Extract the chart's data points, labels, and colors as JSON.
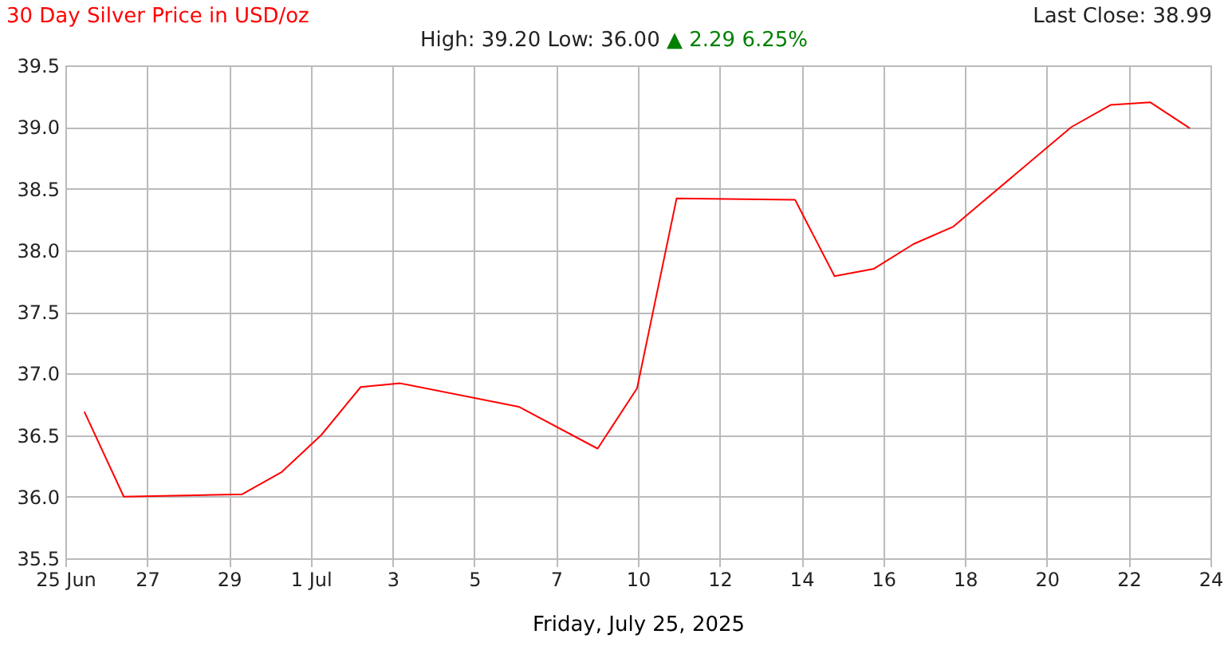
{
  "chart_data": {
    "type": "line",
    "title": "30 Day Silver Price in USD/oz",
    "subtitle": "High: 39.20 Low: 36.00",
    "annotations": [
      "▲ 2.29 6.25%",
      "Last Close: 38.99"
    ],
    "xlabel": "Friday, July 25, 2025",
    "x": [
      "2025-06-25T23:30",
      "2025-06-26T23:30",
      "2025-06-29T23:30",
      "2025-06-30T23:30",
      "2025-07-01T23:30",
      "2025-07-02T23:30",
      "2025-07-03T23:30",
      "2025-07-06T23:30",
      "2025-07-08T23:30",
      "2025-07-09T23:30",
      "2025-07-10T23:30",
      "2025-07-13T23:30",
      "2025-07-14T23:30",
      "2025-07-15T23:30",
      "2025-07-16T23:30",
      "2025-07-17T23:30",
      "2025-07-20T23:30",
      "2025-07-21T23:30",
      "2025-07-22T23:30",
      "2025-07-23T23:30"
    ],
    "series": [
      {
        "color": "#ff0000",
        "values": [
          36.69,
          36.0,
          36.02,
          36.2,
          36.5,
          36.89,
          36.92,
          36.73,
          36.39,
          36.88,
          38.42,
          38.41,
          37.79,
          37.85,
          38.05,
          38.19,
          39.0,
          39.18,
          39.2,
          38.99
        ]
      }
    ],
    "xlim": [
      "2025-06-25T12:00",
      "2025-07-24T12:00"
    ],
    "xticks": [
      {
        "value": "2025-06-25T12:00",
        "label": "25 Jun"
      },
      {
        "value": "2025-06-27T13:43",
        "label": "27"
      },
      {
        "value": "2025-06-29T15:26",
        "label": "29"
      },
      {
        "value": "2025-07-01T17:09",
        "label": "1 Jul"
      },
      {
        "value": "2025-07-03T18:51",
        "label": "3"
      },
      {
        "value": "2025-07-05T20:34",
        "label": "5"
      },
      {
        "value": "2025-07-07T22:17",
        "label": "7"
      },
      {
        "value": "2025-07-10T00:00",
        "label": "10"
      },
      {
        "value": "2025-07-12T01:43",
        "label": "12"
      },
      {
        "value": "2025-07-14T03:26",
        "label": "14"
      },
      {
        "value": "2025-07-16T05:09",
        "label": "16"
      },
      {
        "value": "2025-07-18T06:51",
        "label": "18"
      },
      {
        "value": "2025-07-20T08:34",
        "label": "20"
      },
      {
        "value": "2025-07-22T10:17",
        "label": "22"
      },
      {
        "value": "2025-07-24T12:00",
        "label": "24"
      }
    ],
    "ylim": [
      35.5,
      39.5
    ],
    "yticks": [
      35.5,
      {
        "value": 36,
        "label": "36.0"
      },
      36.5,
      {
        "value": 37,
        "label": "37.0"
      },
      37.5,
      {
        "value": 38,
        "label": "38.0"
      },
      38.5,
      {
        "value": 39,
        "label": "39.0"
      },
      39.5
    ],
    "grid": true,
    "marker": "none",
    "line_style": "solid"
  }
}
